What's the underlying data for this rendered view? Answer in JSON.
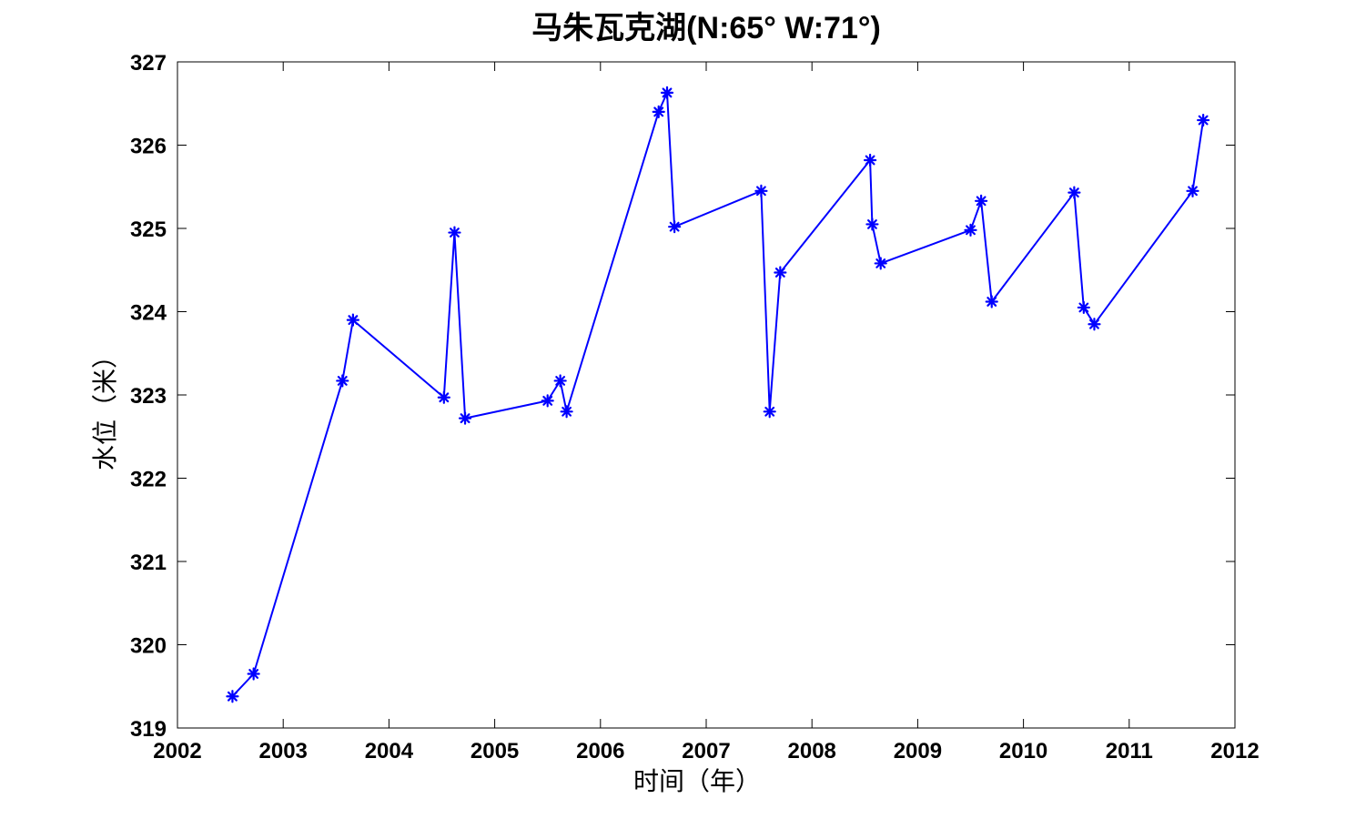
{
  "chart_data": {
    "type": "line",
    "title": "马朱瓦克湖(N:65° W:71°)",
    "xlabel": "时间（年）",
    "ylabel": "水位（米）",
    "xlim": [
      2002,
      2012
    ],
    "ylim": [
      319,
      327
    ],
    "xticks": [
      "2002",
      "2003",
      "2004",
      "2005",
      "2006",
      "2007",
      "2008",
      "2009",
      "2010",
      "2011",
      "2012"
    ],
    "yticks": [
      "319",
      "320",
      "321",
      "322",
      "323",
      "324",
      "325",
      "326",
      "327"
    ],
    "grid": false,
    "marker": "asterisk",
    "series": [
      {
        "color": "#0000ff",
        "x": [
          2002.52,
          2002.72,
          2003.56,
          2003.66,
          2004.52,
          2004.62,
          2004.72,
          2005.5,
          2005.62,
          2005.68,
          2006.55,
          2006.63,
          2006.7,
          2007.52,
          2007.6,
          2007.7,
          2008.55,
          2008.57,
          2008.65,
          2009.5,
          2009.6,
          2009.7,
          2010.48,
          2010.57,
          2010.67,
          2011.6,
          2011.7
        ],
        "y": [
          319.38,
          319.65,
          323.17,
          323.9,
          322.97,
          324.95,
          322.72,
          322.93,
          323.17,
          322.8,
          326.4,
          326.63,
          325.02,
          325.45,
          322.8,
          324.47,
          325.82,
          325.05,
          324.58,
          324.98,
          325.33,
          324.12,
          325.43,
          324.05,
          323.85,
          325.45,
          326.3
        ]
      }
    ]
  }
}
